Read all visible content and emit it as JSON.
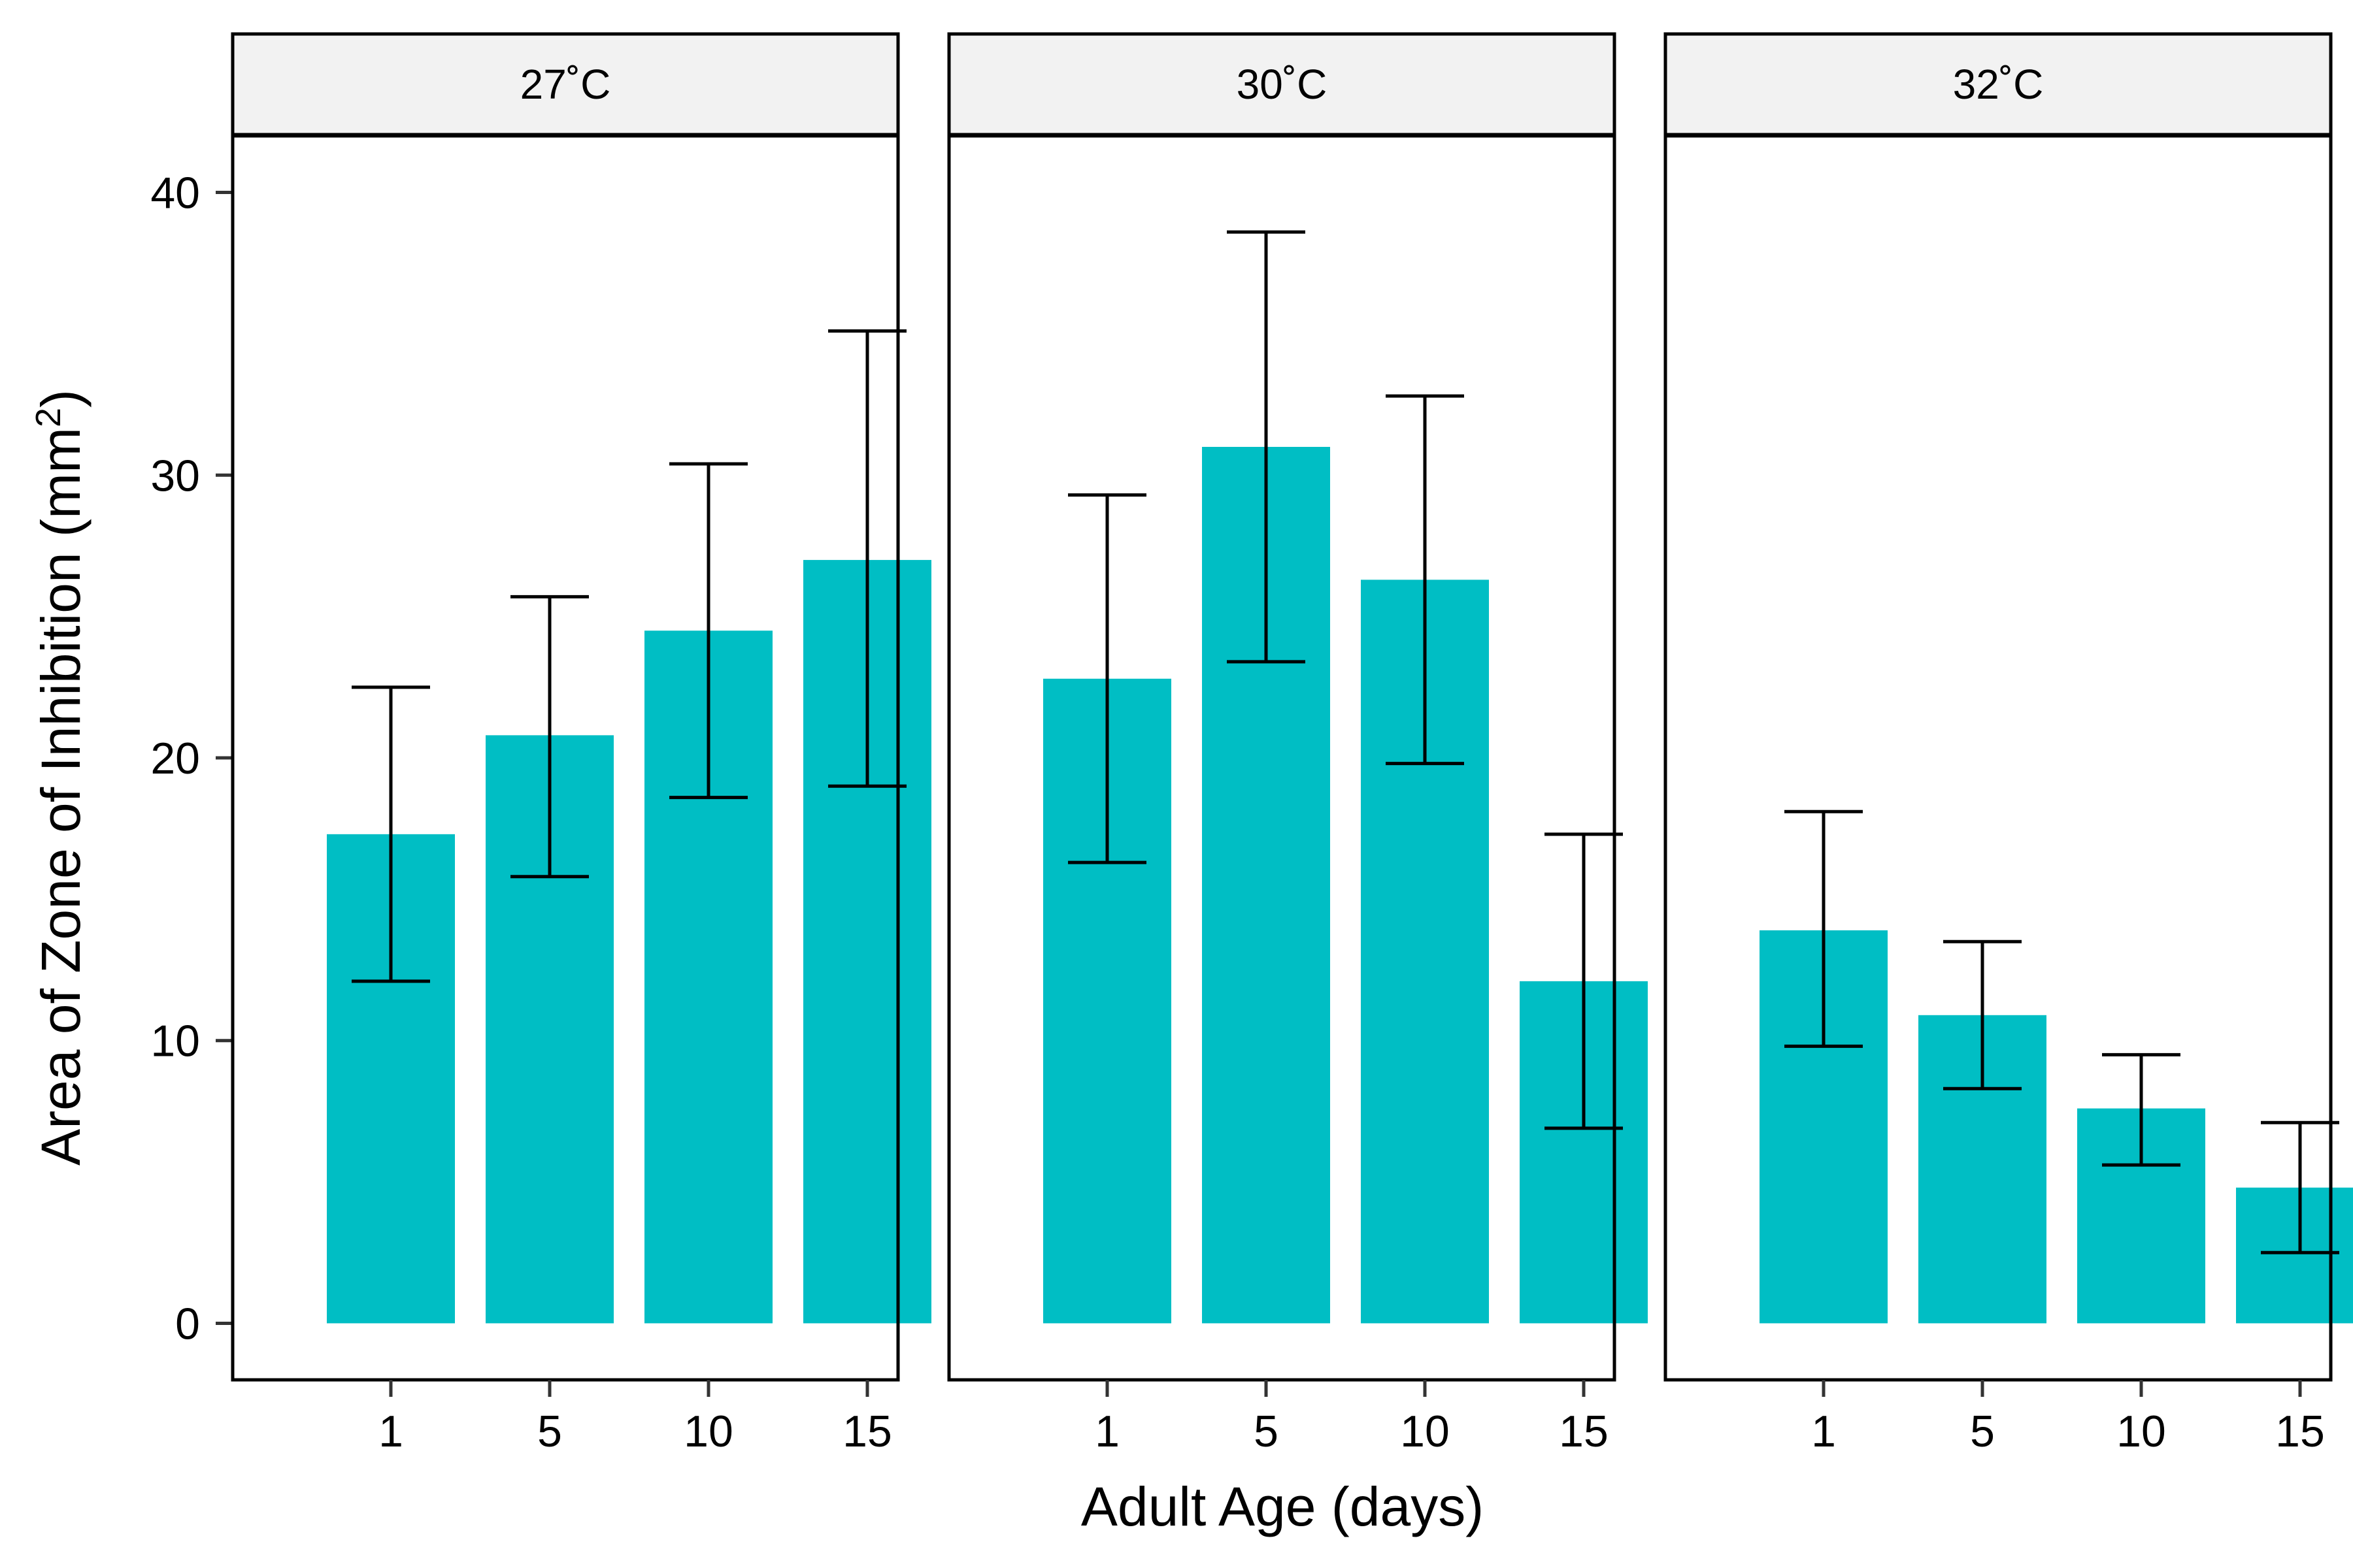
{
  "chart_data": {
    "type": "bar",
    "xlabel": "Adult Age (days)",
    "ylabel": "Area of Zone of Inhibition (mm²)",
    "ylabel_main": "Area of Zone of Inhibition (mm",
    "ylabel_sup": "2",
    "ylabel_close": ")",
    "ylim": [
      -2,
      42
    ],
    "yticks": [
      0,
      10,
      20,
      30,
      40
    ],
    "grid": false,
    "legend": "none",
    "bar_color": "#00BEC4",
    "categories": [
      "1",
      "5",
      "10",
      "15"
    ],
    "panels": [
      {
        "label": "27˚C",
        "values": [
          17.3,
          20.8,
          24.5,
          27.0
        ],
        "error_low": [
          12.1,
          15.8,
          18.6,
          19.0
        ],
        "error_high": [
          22.5,
          25.7,
          30.4,
          35.1
        ]
      },
      {
        "label": "30˚C",
        "values": [
          22.8,
          31.0,
          26.3,
          12.1
        ],
        "error_low": [
          16.3,
          23.4,
          19.8,
          6.9
        ],
        "error_high": [
          29.3,
          38.6,
          32.8,
          17.3
        ]
      },
      {
        "label": "32˚C",
        "values": [
          13.9,
          10.9,
          7.6,
          4.8
        ],
        "error_low": [
          9.8,
          8.3,
          5.6,
          2.5
        ],
        "error_high": [
          18.1,
          13.5,
          9.5,
          7.1
        ]
      }
    ]
  }
}
